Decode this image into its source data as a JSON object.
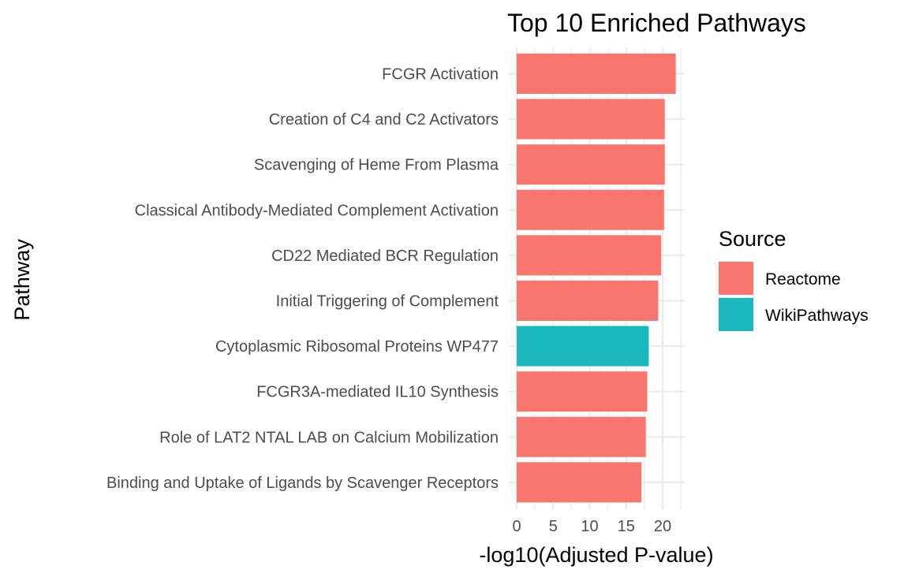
{
  "chart_data": {
    "type": "bar",
    "orientation": "horizontal",
    "title": "Top 10 Enriched Pathways",
    "xlabel": "-log10(Adjusted P-value)",
    "ylabel": "Pathway",
    "xlim": [
      0,
      23
    ],
    "xticks": [
      0,
      5,
      10,
      15,
      20
    ],
    "grid": true,
    "legend": {
      "title": "Source",
      "placement": "right",
      "entries": [
        {
          "name": "Reactome",
          "color": "#F8766D"
        },
        {
          "name": "WikiPathways",
          "color": "#19B8BC"
        }
      ]
    },
    "categories": [
      "FCGR Activation",
      "Creation of C4 and C2 Activators",
      "Scavenging of Heme From Plasma",
      "Classical Antibody-Mediated Complement Activation",
      "CD22 Mediated BCR Regulation",
      "Initial Triggering of Complement",
      "Cytoplasmic Ribosomal Proteins WP477",
      "FCGR3A-mediated IL10 Synthesis",
      "Role of LAT2 NTAL LAB on Calcium Mobilization",
      "Binding and Uptake of Ligands by Scavenger Receptors"
    ],
    "values": [
      21.8,
      20.3,
      20.3,
      20.2,
      19.8,
      19.4,
      18.1,
      17.9,
      17.7,
      17.1
    ],
    "sources": [
      "Reactome",
      "Reactome",
      "Reactome",
      "Reactome",
      "Reactome",
      "Reactome",
      "WikiPathways",
      "Reactome",
      "Reactome",
      "Reactome"
    ]
  }
}
